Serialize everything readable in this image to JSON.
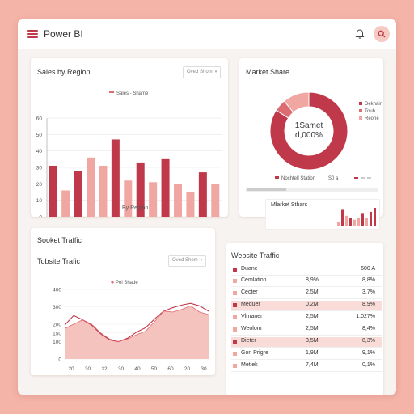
{
  "app": {
    "title": "Power BI"
  },
  "colors": {
    "dark": "#c0394a",
    "light": "#f0a7a2",
    "mid": "#dd6b72",
    "bg": "#f4b4a8"
  },
  "sales_card": {
    "title": "Sales by Region",
    "dropdown": "Oved Shom",
    "legend": "Sales - Shame"
  },
  "market_card": {
    "title": "Market Share",
    "center_line1": "1Samet",
    "center_line2": "d,000%",
    "legend": [
      "Dekhain",
      "Touh",
      "Reone"
    ],
    "bottom_legend": [
      "Nochtell Station",
      "S0 a"
    ],
    "sub_title": "Mlarket Sthars"
  },
  "sooket_card": {
    "title": "Sooket Traffic",
    "subtitle": "Tobsite Trafic",
    "dropdown": "Oved Shom",
    "legend": "Pel Shade"
  },
  "website_card": {
    "title": "Website Traffic",
    "header": {
      "label": "Duane",
      "value": "600 A"
    },
    "rows": [
      {
        "label": "Cemlation",
        "v1": "8,9%",
        "v2": "8,8%",
        "hl": false
      },
      {
        "label": "Cecter",
        "v1": "2,5Ml",
        "v2": "3,7%",
        "hl": false
      },
      {
        "label": "Meduer",
        "v1": "0,2Ml",
        "v2": "8,9%",
        "hl": true
      },
      {
        "label": "Vlrnaner",
        "v1": "2,5Ml",
        "v2": "1.027%",
        "hl": false
      },
      {
        "label": "Weolom",
        "v1": "2,5Ml",
        "v2": "8,4%",
        "hl": false
      },
      {
        "label": "Dieter",
        "v1": "3,5Ml",
        "v2": "8,3%",
        "hl": true
      },
      {
        "label": "Gon Prigre",
        "v1": "1,9Ml",
        "v2": "9,1%",
        "hl": false
      },
      {
        "label": "Metlek",
        "v1": "7,4Ml",
        "v2": "0,1%",
        "hl": false
      }
    ]
  },
  "chart_data": [
    {
      "type": "bar",
      "title": "Sales by Region",
      "xlabel": "By Region",
      "ylabel": "",
      "ylim": [
        0,
        60
      ],
      "yticks": [
        0,
        10,
        20,
        30,
        40,
        50,
        60
      ],
      "values": [
        31,
        16,
        28,
        36,
        31,
        47,
        22,
        33,
        21,
        35,
        20,
        15,
        27,
        20
      ],
      "shades": [
        "dark",
        "light",
        "dark",
        "light",
        "light",
        "dark",
        "light",
        "dark",
        "light",
        "dark",
        "light",
        "light",
        "dark",
        "light"
      ],
      "grid": true
    },
    {
      "type": "pie",
      "title": "Market Share",
      "slices": [
        {
          "name": "Dekhain",
          "value": 84
        },
        {
          "name": "Touh",
          "value": 5
        },
        {
          "name": "Reone",
          "value": 11
        }
      ]
    },
    {
      "type": "bar",
      "title": "Mlarket Sthars",
      "values": [
        2,
        8,
        5,
        4,
        3,
        4,
        6,
        4,
        7,
        9
      ],
      "shades": [
        "light",
        "dark",
        "light",
        "dark",
        "light",
        "light",
        "dark",
        "light",
        "dark",
        "dark"
      ]
    },
    {
      "type": "area",
      "title": "Tobsite Trafic",
      "ylim": [
        0,
        400
      ],
      "yticks": [
        0,
        100,
        150,
        200,
        300,
        400
      ],
      "xticks": [
        "20",
        "30",
        "32",
        "30",
        "40",
        "50",
        "60",
        "20",
        "30"
      ],
      "x": [
        0,
        1,
        2,
        3,
        4,
        5,
        6,
        7,
        8,
        9,
        10,
        11,
        12,
        13,
        14,
        15,
        16
      ],
      "y": [
        175,
        200,
        225,
        200,
        150,
        115,
        100,
        115,
        140,
        160,
        215,
        275,
        270,
        285,
        305,
        270,
        255
      ],
      "y2": [
        195,
        250,
        225,
        195,
        145,
        110,
        100,
        120,
        155,
        180,
        230,
        275,
        295,
        310,
        320,
        305,
        275
      ]
    }
  ]
}
